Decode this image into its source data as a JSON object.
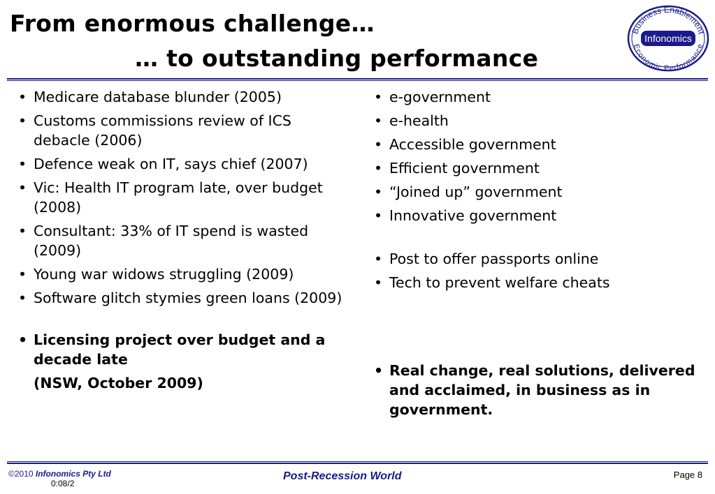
{
  "title": {
    "line1": "From enormous challenge…",
    "line2": "… to outstanding performance"
  },
  "logo": {
    "arc_top": "Business Enablement",
    "center": "Infonomics",
    "arc_bottom": "Economic Performance",
    "icon": "infonomics-logo",
    "color": "#1a1a8c"
  },
  "left_column": {
    "group1": [
      "Medicare database blunder (2005)",
      "Customs commissions review of ICS debacle (2006)",
      "Defence weak on IT, says chief (2007)",
      "Vic: Health IT program late, over budget (2008)",
      "Consultant: 33% of IT spend is wasted (2009)",
      "Young war widows struggling (2009)",
      "Software glitch stymies green loans (2009)"
    ],
    "highlight": "Licensing project over budget and a decade late",
    "highlight_note": "(NSW, October 2009)"
  },
  "right_column": {
    "group1": [
      "e-government",
      "e-health",
      "Accessible government",
      "Efficient government",
      "“Joined up” government",
      "Innovative government"
    ],
    "group2": [
      "Post to offer passports online",
      "Tech to prevent welfare cheats"
    ],
    "highlight": "Real change, real solutions, delivered and acclaimed, in business as in government."
  },
  "footer": {
    "copyright": "©2010",
    "company": "Infonomics Pty Ltd",
    "code": "0:08/2",
    "center": "Post-Recession World",
    "page": "Page 8"
  },
  "colors": {
    "accent": "#1a1a8c",
    "text": "#000000"
  }
}
